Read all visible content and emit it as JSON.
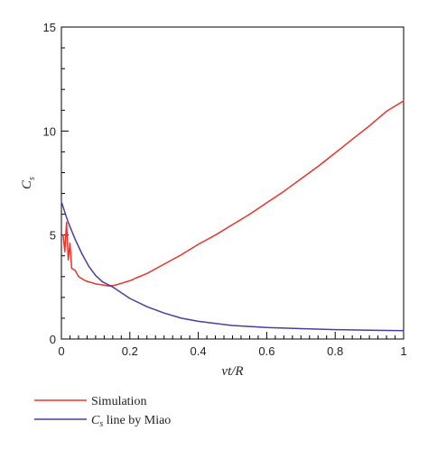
{
  "chart_data": {
    "type": "line",
    "xlabel": "vt/R",
    "ylabel": "C_s",
    "xlim": [
      0,
      1
    ],
    "ylim": [
      0,
      15
    ],
    "x_ticks": [
      0,
      0.2,
      0.4,
      0.6,
      0.8,
      1
    ],
    "x_tick_labels": [
      "0",
      "0.2",
      "0.4",
      "0.6",
      "0.8",
      "1"
    ],
    "y_ticks": [
      0,
      5,
      10,
      15
    ],
    "y_tick_labels": [
      "0",
      "5",
      "10",
      "15"
    ],
    "grid": false,
    "legend_placement": "bottom-left, below the plot",
    "series": [
      {
        "name": "Simulation",
        "color": "#e8352b",
        "x": [
          0.005,
          0.01,
          0.015,
          0.02,
          0.025,
          0.03,
          0.04,
          0.05,
          0.06,
          0.07,
          0.08,
          0.09,
          0.1,
          0.12,
          0.14,
          0.16,
          0.18,
          0.2,
          0.22,
          0.25,
          0.3,
          0.35,
          0.4,
          0.45,
          0.5,
          0.55,
          0.6,
          0.65,
          0.7,
          0.75,
          0.8,
          0.85,
          0.9,
          0.95,
          1.0
        ],
        "values": [
          5.0,
          4.2,
          5.6,
          3.8,
          4.6,
          3.4,
          3.3,
          3.0,
          2.9,
          2.8,
          2.75,
          2.7,
          2.65,
          2.6,
          2.55,
          2.6,
          2.7,
          2.8,
          2.95,
          3.15,
          3.6,
          4.05,
          4.55,
          5.0,
          5.5,
          6.0,
          6.55,
          7.1,
          7.7,
          8.3,
          8.95,
          9.6,
          10.25,
          10.95,
          11.45
        ]
      },
      {
        "name": "C_s line by Miao",
        "color": "#4b3c9e",
        "x": [
          0,
          0.02,
          0.04,
          0.06,
          0.08,
          0.1,
          0.12,
          0.15,
          0.2,
          0.25,
          0.3,
          0.35,
          0.4,
          0.5,
          0.6,
          0.7,
          0.8,
          0.9,
          1.0
        ],
        "values": [
          6.6,
          5.6,
          4.8,
          4.1,
          3.5,
          3.05,
          2.75,
          2.5,
          1.95,
          1.55,
          1.25,
          1.0,
          0.85,
          0.65,
          0.55,
          0.5,
          0.45,
          0.42,
          0.4
        ]
      }
    ],
    "legend": [
      {
        "label": "Simulation",
        "color": "#e8352b"
      },
      {
        "label_italic": "C",
        "label_sub": "s",
        "label_rest": " line by Miao",
        "color": "#4b3c9e"
      }
    ],
    "ylabel_main": "C",
    "ylabel_sub": "s"
  }
}
